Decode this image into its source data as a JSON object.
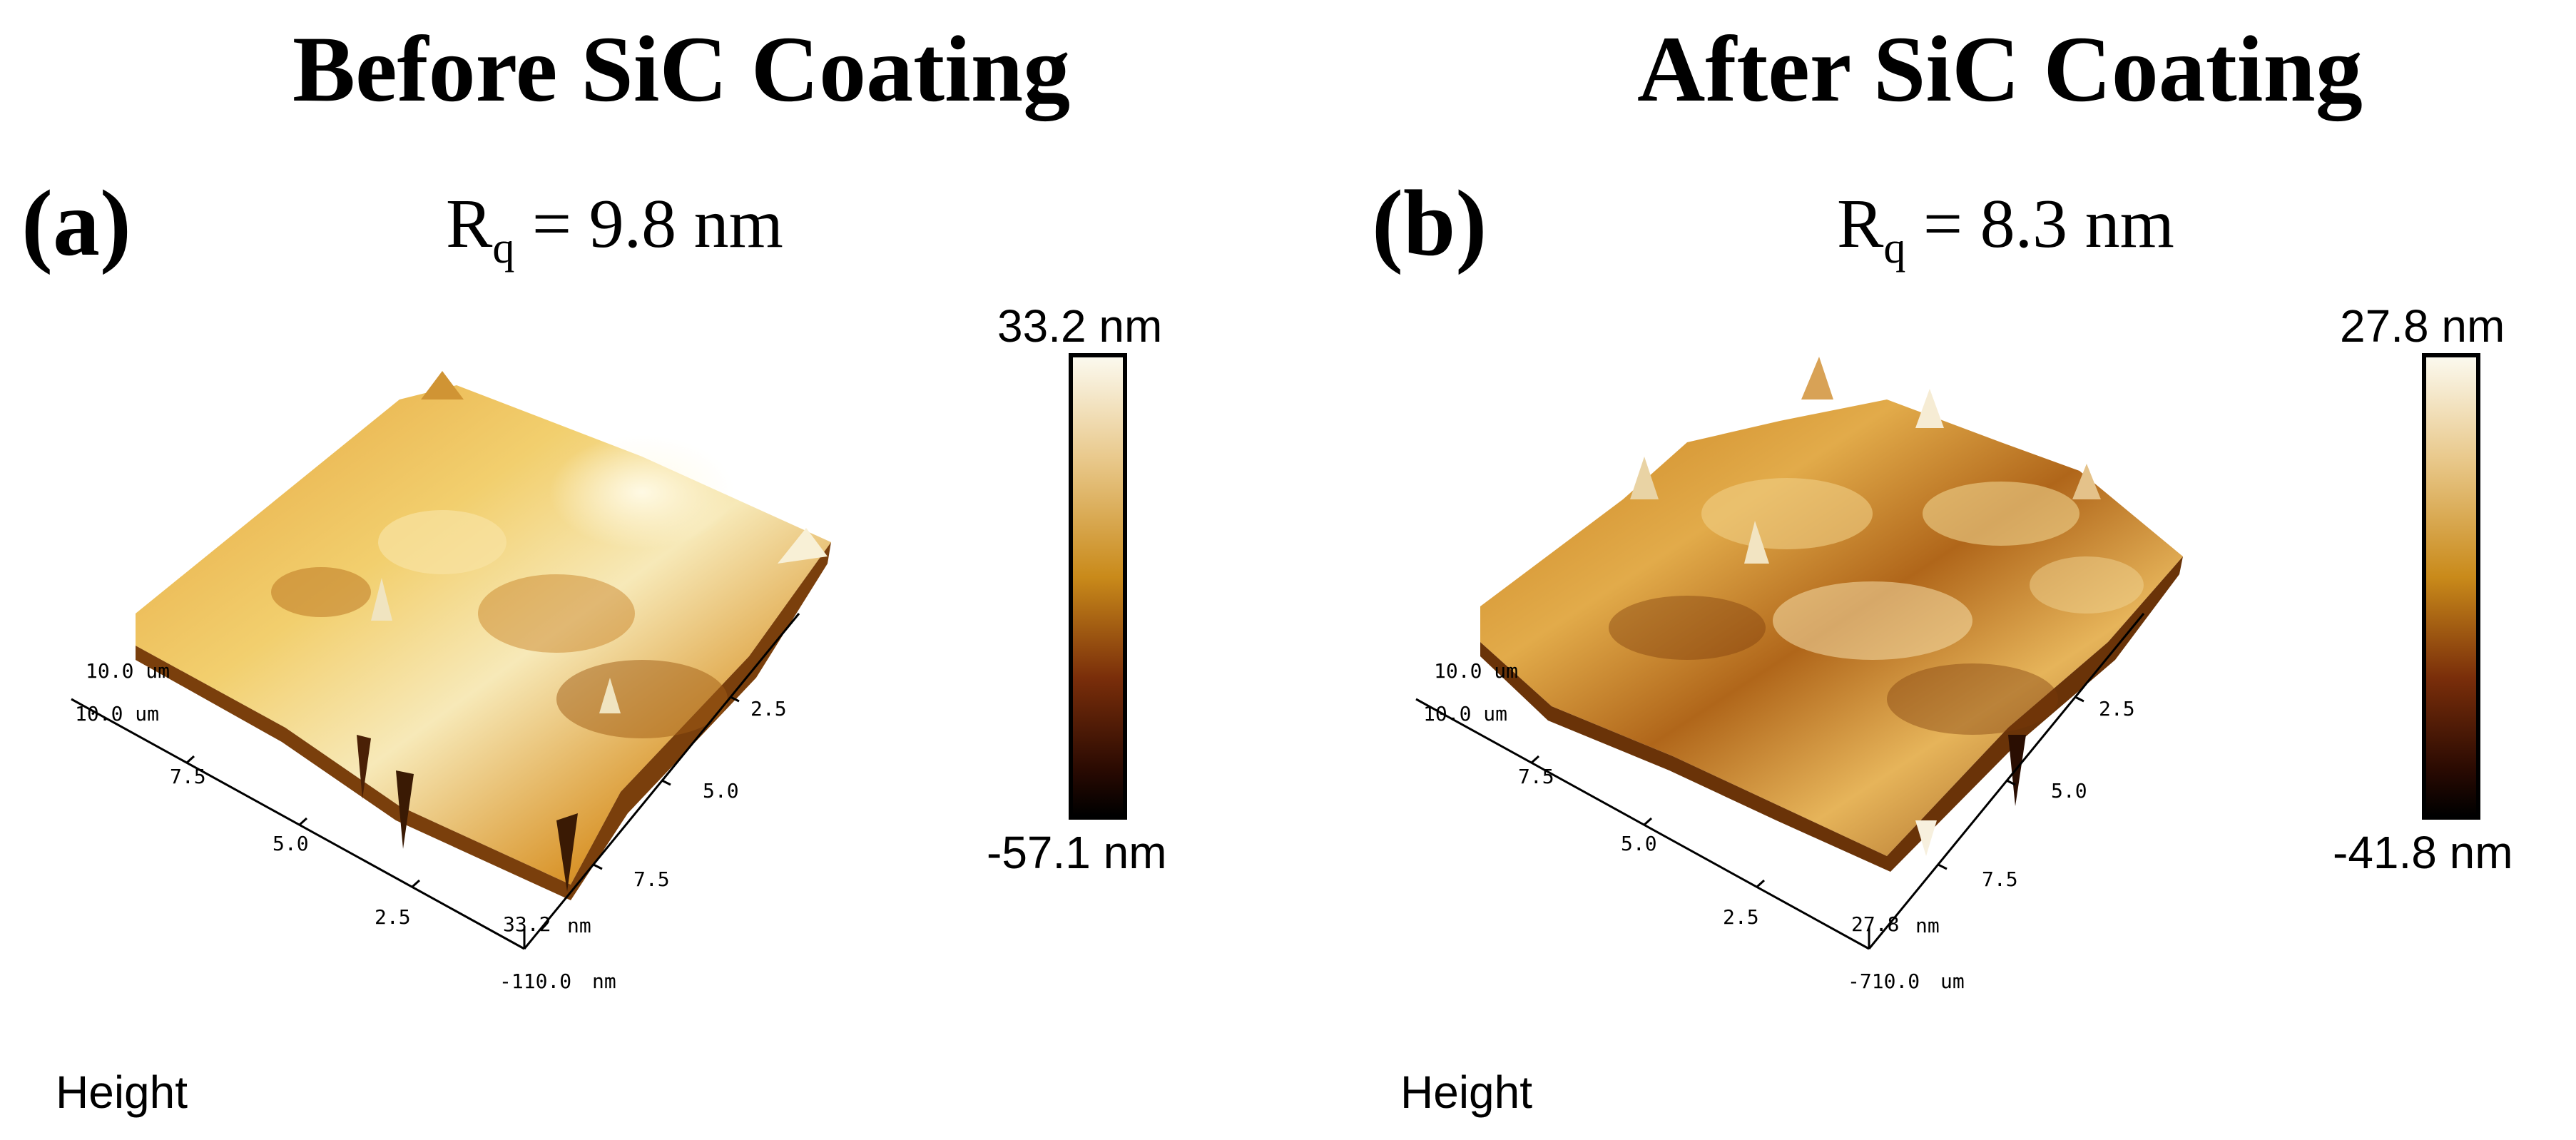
{
  "panels": [
    {
      "id": "a",
      "title": "Before SiC Coating",
      "letter": "(a)",
      "rq_symbol": "R",
      "rq_sub": "q",
      "rq_value": " = 9.8 nm",
      "colorbar_max": "33.2 nm",
      "colorbar_min": "-57.1 nm",
      "z_top": "33.2",
      "z_unit": "nm",
      "z_bottom": "-110.0",
      "z_bottom_unit": "nm",
      "x_origin": "10.0 um",
      "y_origin": "10.0 um",
      "left_axis_ticks": [
        "7.5",
        "5.0",
        "2.5"
      ],
      "right_axis_ticks": [
        "2.5",
        "5.0",
        "7.5"
      ],
      "footer": "Height"
    },
    {
      "id": "b",
      "title": "After SiC Coating",
      "letter": "(b)",
      "rq_symbol": "R",
      "rq_sub": "q",
      "rq_value": " = 8.3 nm",
      "colorbar_max": "27.8 nm",
      "colorbar_min": "-41.8 nm",
      "z_top": "27.8",
      "z_unit": "nm",
      "z_bottom": "-710.0",
      "z_bottom_unit": "um",
      "x_origin": "10.0 um",
      "y_origin": "10.0 um",
      "left_axis_ticks": [
        "7.5",
        "5.0",
        "2.5"
      ],
      "right_axis_ticks": [
        "2.5",
        "5.0",
        "7.5"
      ],
      "footer": "Height"
    }
  ],
  "colors": {
    "colorbar_top": "#fbf9ee",
    "colorbar_mid": "#c98a1a",
    "colorbar_dark": "#5a1d08",
    "colorbar_bottom": "#000000",
    "surface_light": "#f3d67c",
    "surface_mid": "#d89a2a",
    "surface_dark": "#8a4a10"
  }
}
